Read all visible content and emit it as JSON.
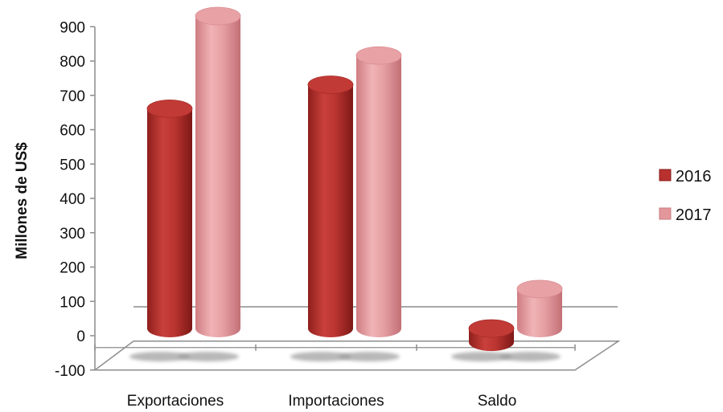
{
  "chart_data": {
    "type": "bar",
    "variant": "3d-cylinder",
    "title": "",
    "xlabel": "",
    "ylabel": "Millones de US$",
    "categories": [
      "Exportaciones",
      "Importaciones",
      "Saldo"
    ],
    "series": [
      {
        "name": "2016",
        "values": [
          640,
          710,
          -40
        ],
        "color": "#b8312f"
      },
      {
        "name": "2017",
        "values": [
          910,
          795,
          115
        ],
        "color": "#e4979b"
      }
    ],
    "ylim": [
      -100,
      900
    ],
    "yticks": [
      -100,
      0,
      100,
      200,
      300,
      400,
      500,
      600,
      700,
      800,
      900
    ],
    "grid": false,
    "legend": "right"
  }
}
